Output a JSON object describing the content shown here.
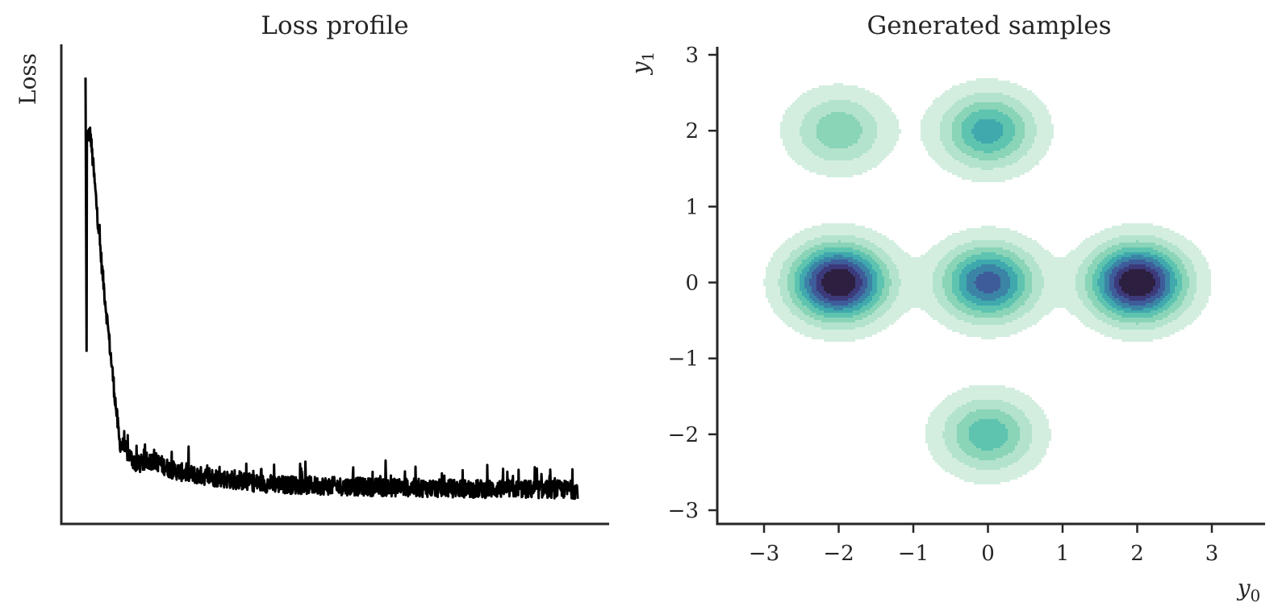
{
  "colors": {
    "loss_line": "#000000",
    "axes": "#262626",
    "levels": [
      "#d3eedf",
      "#b3e3cc",
      "#8ad4b8",
      "#5ec4b0",
      "#3fa9ad",
      "#3b84a6",
      "#3f5c9a",
      "#3c3a7a",
      "#2d1f3f"
    ]
  },
  "chart_data": [
    {
      "type": "line",
      "title": "Loss profile",
      "ylabel": "Loss",
      "xlabel": "",
      "x_ticks_visible": false,
      "y_ticks_visible": false,
      "grid": false,
      "series": [
        {
          "values": [
            0.98,
            0.55,
            0.18,
            0.13,
            0.14,
            0.12,
            0.11,
            0.105,
            0.1,
            0.095,
            0.09,
            0.088,
            0.086,
            0.085,
            0.084,
            0.083,
            0.082,
            0.081,
            0.08,
            0.08,
            0.079,
            0.078,
            0.078,
            0.077,
            0.077,
            0.077,
            0.076,
            0.076,
            0.076,
            0.075
          ]
        }
      ],
      "noise": {
        "amplitude": 0.02,
        "spike_height": 0.045
      },
      "ylim": [
        0,
        1.0
      ]
    },
    {
      "type": "heatmap",
      "subtype": "kde-contour",
      "title": "Generated samples",
      "xlabel": "y0",
      "ylabel": "y1",
      "x_ticks": [
        "−3",
        "−2",
        "−1",
        "0",
        "1",
        "2",
        "3"
      ],
      "x_tick_values": [
        -3,
        -2,
        -1,
        0,
        1,
        2,
        3
      ],
      "y_ticks": [
        "3",
        "2",
        "1",
        "0",
        "−1",
        "−2",
        "−3"
      ],
      "y_tick_values": [
        3,
        2,
        1,
        0,
        -1,
        -2,
        -3
      ],
      "xlim": [
        -3.6,
        3.6
      ],
      "ylim": [
        -3.15,
        3.15
      ],
      "grid": false,
      "components": [
        {
          "x": -2,
          "y": 0,
          "weight": 1.0,
          "sx": 0.42,
          "sy": 0.33
        },
        {
          "x": 2,
          "y": 0,
          "weight": 1.0,
          "sx": 0.42,
          "sy": 0.33
        },
        {
          "x": 0,
          "y": 0,
          "weight": 0.72,
          "sx": 0.42,
          "sy": 0.33
        },
        {
          "x": 0,
          "y": 2,
          "weight": 0.52,
          "sx": 0.42,
          "sy": 0.33
        },
        {
          "x": -2,
          "y": 2,
          "weight": 0.34,
          "sx": 0.42,
          "sy": 0.33
        },
        {
          "x": 0,
          "y": -2,
          "weight": 0.44,
          "sx": 0.42,
          "sy": 0.33
        }
      ],
      "levels": [
        0.06,
        0.16,
        0.26,
        0.36,
        0.46,
        0.56,
        0.66,
        0.76,
        0.86
      ]
    }
  ]
}
